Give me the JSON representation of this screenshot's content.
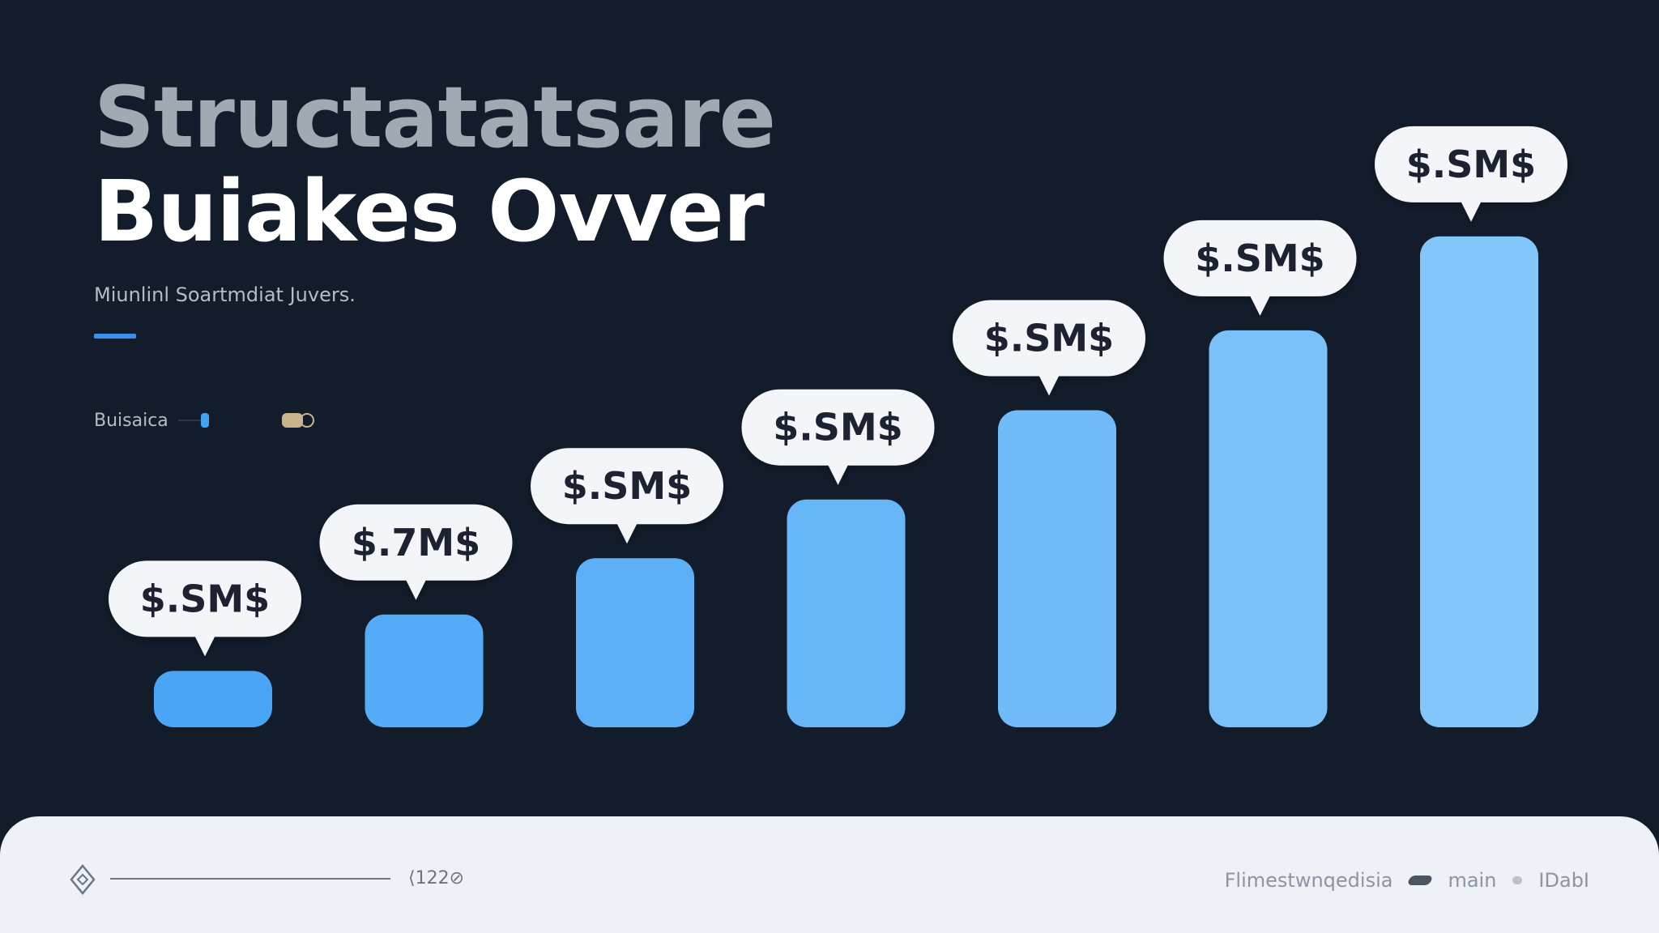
{
  "header": {
    "title_line1": "Structatatsare",
    "title_line2": "Buiakes Ovver",
    "subtitle": "Miunlinl Soartmdiat Juvers."
  },
  "legend": {
    "label": "Buisaica",
    "swatch_color": "#3ea2f5",
    "icon_color": "#c8b58b"
  },
  "footer": {
    "count": "⟨122⊘",
    "right_text_1": "Flimestwnqedisia",
    "right_text_2": "main",
    "right_text_3": "IDabI"
  },
  "colors": {
    "background": "#121c2b",
    "accent": "#3b8ff0",
    "bar_start": "#4aa5f6",
    "bar_end": "#83c6f9",
    "callout_bg": "#f3f5f8",
    "callout_text": "#1a2230"
  },
  "chart_data": {
    "type": "bar",
    "title": "Structatatsare Buiakes Ovver",
    "xlabel": "",
    "ylabel": "",
    "ylim": [
      0,
      100
    ],
    "grid": false,
    "legend": "top-left",
    "categories": [
      "",
      "",
      "",
      "",
      "",
      "",
      ""
    ],
    "values": [
      12,
      24,
      36,
      48.5,
      67.5,
      84.5,
      104.5
    ],
    "data_labels": [
      "$.SM$",
      "$.7M$",
      "$.SM$",
      "$.SM$",
      "$.SM$",
      "$.SM$",
      "$.SM$"
    ]
  }
}
